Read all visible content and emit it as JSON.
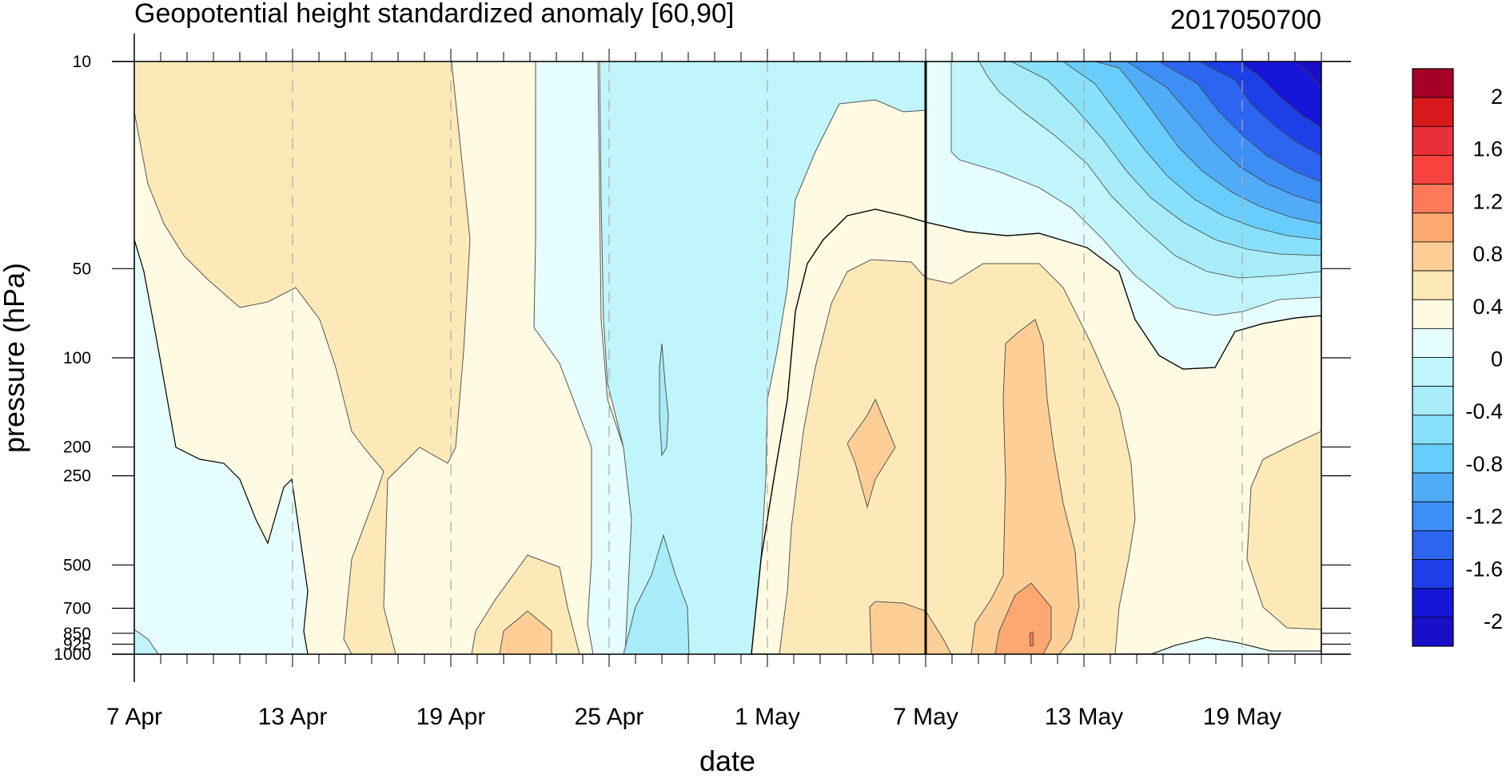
{
  "chart_data": {
    "type": "heatmap",
    "title": "Geopotential height standardized anomaly [60,90]",
    "subtitle": "2017050700",
    "xlabel": "date",
    "ylabel": "pressure (hPa)",
    "x_ticks": [
      "7 Apr",
      "13 Apr",
      "19 Apr",
      "25 Apr",
      "1 May",
      "7 May",
      "13 May",
      "19 May"
    ],
    "x_start": "7 Apr",
    "x_end": "22 May",
    "y_ticks": [
      "10",
      "50",
      "100",
      "200",
      "250",
      "500",
      "700",
      "850",
      "925",
      "1000"
    ],
    "y_scale": "log",
    "y_reversed": true,
    "analysis_marker": "7 May",
    "colorbar": {
      "levels": [
        "2",
        "1.6",
        "1.2",
        "0.8",
        "0.4",
        "0",
        "-0.4",
        "-0.8",
        "-1.2",
        "-1.6",
        "-2"
      ],
      "colors": [
        "#a50026",
        "#d7191c",
        "#e8303a",
        "#f7423e",
        "#fc7a5a",
        "#fca870",
        "#fdcf96",
        "#fde9b8",
        "#fffbe3",
        "#e6fdfe",
        "#c0f5fb",
        "#a7ecf8",
        "#88e0fa",
        "#68cdfb",
        "#51acf7",
        "#3d8ff5",
        "#2c66f0",
        "#1d3fe8",
        "#1616d8",
        "#1a0fc8"
      ]
    },
    "regions": [
      {
        "from": "7 Apr",
        "to": "19 Apr",
        "level_range": "0.2 to 0.4",
        "top": "10",
        "bottom": "100"
      },
      {
        "from": "7 Apr",
        "to": "13 Apr",
        "level_range": "-0.2 to 0",
        "top": "100",
        "bottom": "1000"
      },
      {
        "from": "14 Apr",
        "to": "24 Apr",
        "level_range": "0 to 0.4",
        "top": "10",
        "bottom": "1000"
      },
      {
        "from": "26 Apr",
        "to": "1 May",
        "level_range": "-0.4 to -0.2",
        "top": "10",
        "bottom": "1000"
      },
      {
        "from": "3 May",
        "to": "13 May",
        "level_range": "0.2 to 0.6",
        "top": "50",
        "bottom": "1000"
      },
      {
        "from": "15 May",
        "to": "22 May",
        "level_range": "-2 to -0.2",
        "top": "10",
        "bottom": "80"
      }
    ]
  }
}
